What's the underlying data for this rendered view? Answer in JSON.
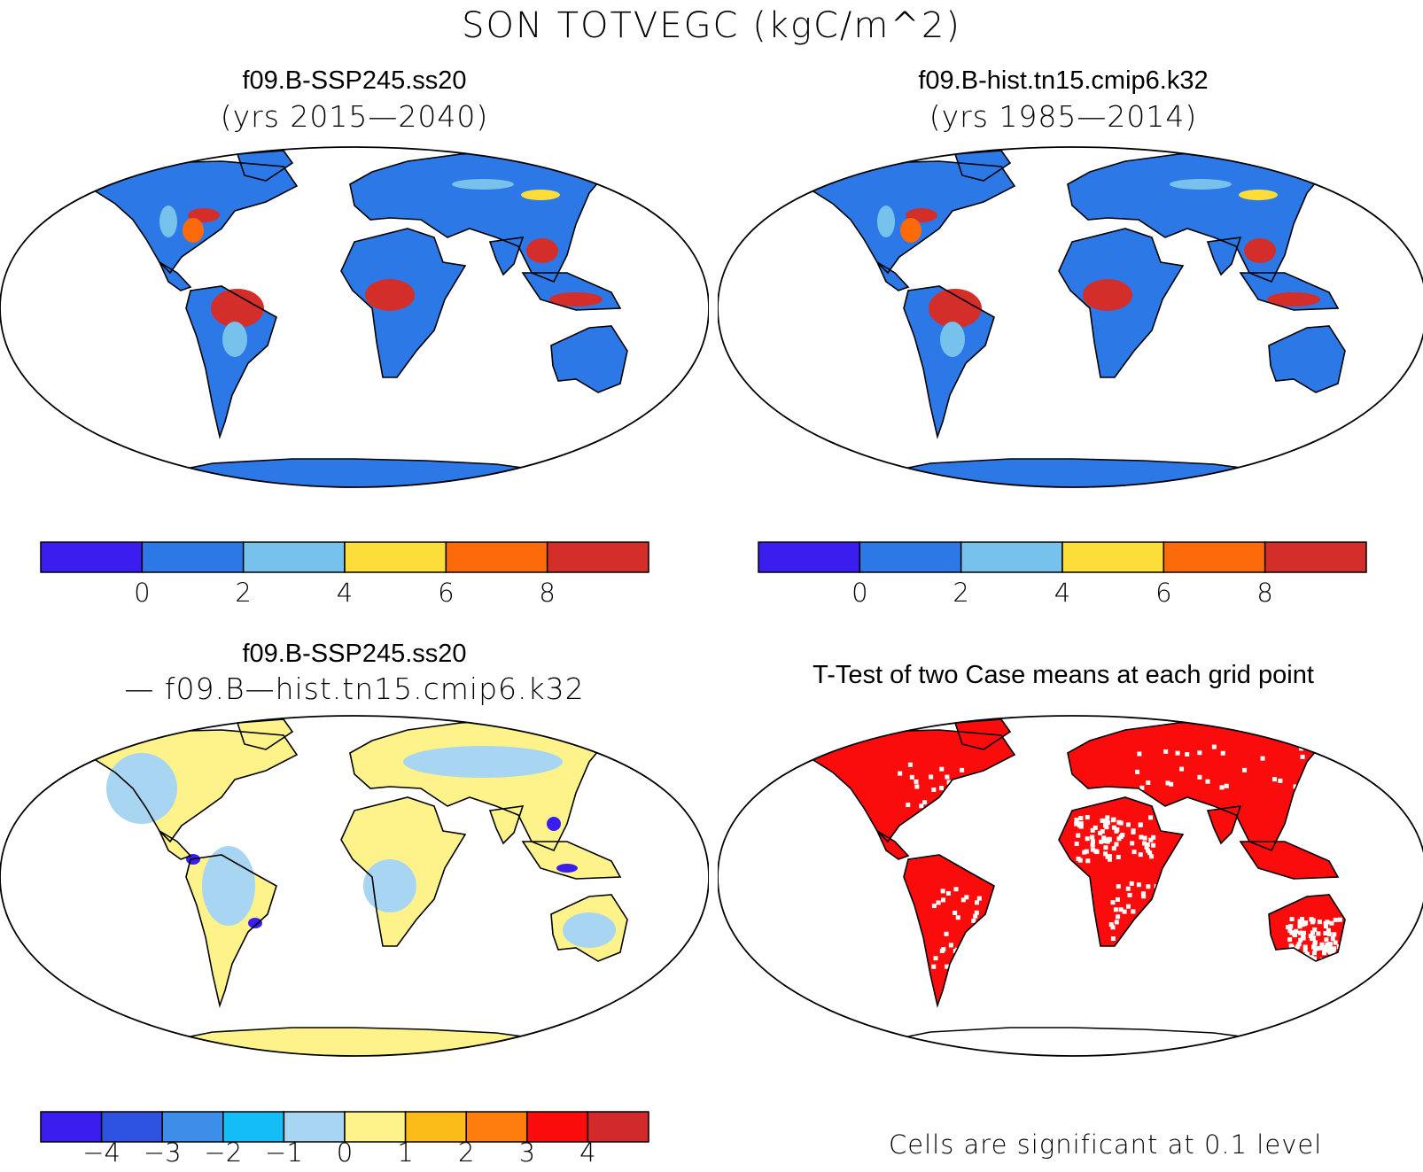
{
  "title": "SON TOTVEGC (kgC/m^2)",
  "panels": {
    "top_left": {
      "title": "f09.B-SSP245.ss20",
      "subtitle": "(yrs 2015—2040)"
    },
    "top_right": {
      "title": "f09.B-hist.tn15.cmip6.k32",
      "subtitle": "(yrs 1985—2014)"
    },
    "bottom_left": {
      "title": "f09.B-SSP245.ss20",
      "subtitle": "— f09.B—hist.tn15.cmip6.k32"
    },
    "bottom_right": {
      "title": "T-Test of two Case means at each grid point",
      "note": "Cells are significant at 0.1 level"
    }
  },
  "colorbar_abs": {
    "colors": [
      "#3a1ef0",
      "#2b78e6",
      "#76c2ec",
      "#fddd3a",
      "#fd6a0a",
      "#d42e2a"
    ],
    "labels": [
      "0",
      "2",
      "4",
      "6",
      "8"
    ]
  },
  "colorbar_diff": {
    "colors": [
      "#3a1ef0",
      "#2e52e0",
      "#3d8ee8",
      "#14bdf5",
      "#a8d5f2",
      "#fdf38a",
      "#fbbb18",
      "#fd7c0c",
      "#fb0c0c",
      "#d22a2a"
    ],
    "labels": [
      "−4",
      "−3",
      "−2",
      "−1",
      "0",
      "1",
      "2",
      "3",
      "4"
    ]
  },
  "map_colors": {
    "abs_land": "#2b78e6",
    "abs_high": "#d42e2a",
    "abs_mid": "#fd6a0a",
    "abs_light": "#76c2ec",
    "abs_yellow": "#fddd3a",
    "diff_land": "#fdf38a",
    "diff_neg": "#a8d5f2",
    "diff_strong": "#3a1ef0",
    "ttest_sig": "#fb0c0c"
  }
}
